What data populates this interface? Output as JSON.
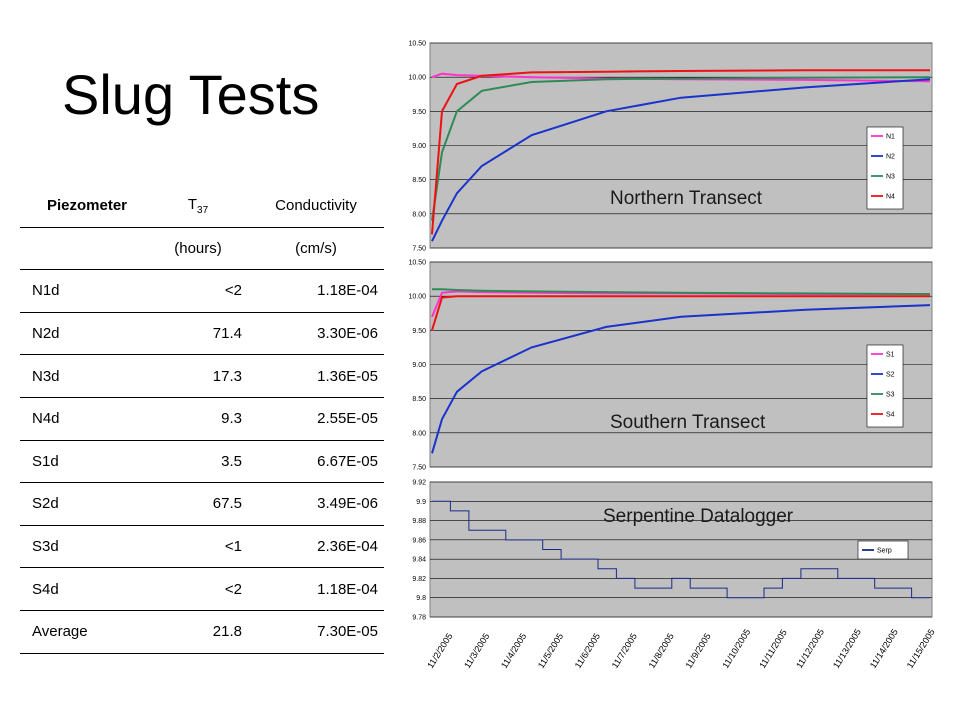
{
  "slide_title": "Slug Tests",
  "table": {
    "headers": [
      "Piezometer",
      "T",
      "Conductivity"
    ],
    "header_sub": "37",
    "units": [
      "",
      "(hours)",
      "(cm/s)"
    ],
    "rows": [
      [
        "N1d",
        "<2",
        "1.18E-04"
      ],
      [
        "N2d",
        "71.4",
        "3.30E-06"
      ],
      [
        "N3d",
        "17.3",
        "1.36E-05"
      ],
      [
        "N4d",
        "9.3",
        "2.55E-05"
      ],
      [
        "S1d",
        "3.5",
        "6.67E-05"
      ],
      [
        "S2d",
        "67.5",
        "3.49E-06"
      ],
      [
        "S3d",
        "<1",
        "2.36E-04"
      ],
      [
        "S4d",
        "<2",
        "1.18E-04"
      ],
      [
        "Average",
        "21.8",
        "7.30E-05"
      ]
    ]
  },
  "chart_data": [
    {
      "type": "line",
      "annotation": "Northern Transect",
      "ylim": [
        7.5,
        10.5
      ],
      "yticks": [
        "10.50",
        "10.00",
        "9.50",
        "9.00",
        "8.50",
        "8.00",
        "7.50"
      ],
      "grid": true,
      "legend_position": "right",
      "x": [
        0,
        0.02,
        0.05,
        0.1,
        0.2,
        0.35,
        0.5,
        0.75,
        1.0
      ],
      "series": [
        {
          "name": "N1",
          "color": "#ff33cc",
          "values": [
            10.0,
            10.05,
            10.03,
            10.02,
            10.0,
            9.98,
            9.97,
            9.96,
            9.94
          ]
        },
        {
          "name": "N2",
          "color": "#1a33cc",
          "values": [
            7.6,
            7.9,
            8.3,
            8.7,
            9.15,
            9.5,
            9.7,
            9.85,
            9.97
          ]
        },
        {
          "name": "N3",
          "color": "#2e8b57",
          "values": [
            7.9,
            8.9,
            9.5,
            9.8,
            9.93,
            9.97,
            9.98,
            9.99,
            10.0
          ]
        },
        {
          "name": "N4",
          "color": "#ee1111",
          "values": [
            7.7,
            9.5,
            9.9,
            10.02,
            10.07,
            10.08,
            10.09,
            10.1,
            10.1
          ]
        }
      ]
    },
    {
      "type": "line",
      "annotation": "Southern Transect",
      "ylim": [
        7.5,
        10.5
      ],
      "yticks": [
        "10.50",
        "10.00",
        "9.50",
        "9.00",
        "8.50",
        "8.00",
        "7.50"
      ],
      "grid": true,
      "legend_position": "right",
      "x": [
        0,
        0.02,
        0.05,
        0.1,
        0.2,
        0.35,
        0.5,
        0.75,
        1.0
      ],
      "series": [
        {
          "name": "S1",
          "color": "#ff33cc",
          "values": [
            9.7,
            10.05,
            10.07,
            10.06,
            10.05,
            10.04,
            10.04,
            10.03,
            10.03
          ]
        },
        {
          "name": "S2",
          "color": "#1a33cc",
          "values": [
            7.7,
            8.2,
            8.6,
            8.9,
            9.25,
            9.55,
            9.7,
            9.8,
            9.87
          ]
        },
        {
          "name": "S3",
          "color": "#2e8b57",
          "values": [
            10.1,
            10.1,
            10.09,
            10.08,
            10.07,
            10.06,
            10.05,
            10.04,
            10.03
          ]
        },
        {
          "name": "S4",
          "color": "#ee1111",
          "values": [
            9.5,
            9.98,
            10.0,
            10.0,
            10.0,
            10.0,
            10.0,
            10.0,
            10.0
          ]
        }
      ]
    },
    {
      "type": "line",
      "annotation": "Serpentine Datalogger",
      "ylim": [
        9.78,
        9.92
      ],
      "yticks": [
        "9.92",
        "9.9",
        "9.88",
        "9.86",
        "9.84",
        "9.82",
        "9.8",
        "9.78"
      ],
      "grid": true,
      "legend_position": "right",
      "categories": [
        "11/2/2005",
        "11/3/2005",
        "11/4/2005",
        "11/5/2005",
        "11/6/2005",
        "11/7/2005",
        "11/8/2005",
        "11/9/2005",
        "11/10/2005",
        "11/11/2005",
        "11/12/2005",
        "11/13/2005",
        "11/14/2005",
        "11/15/2005"
      ],
      "x": [
        0,
        0.5,
        1,
        1.5,
        2,
        2.5,
        3,
        3.5,
        4,
        4.5,
        5,
        5.5,
        6,
        6.5,
        7,
        7.5,
        8,
        8.5,
        9,
        9.5,
        10,
        10.5,
        11,
        11.5,
        12,
        12.5,
        13,
        13.5
      ],
      "series": [
        {
          "name": "Serp",
          "color": "#1a2a8a",
          "values": [
            9.9,
            9.89,
            9.87,
            9.87,
            9.86,
            9.86,
            9.85,
            9.84,
            9.84,
            9.83,
            9.82,
            9.81,
            9.81,
            9.82,
            9.81,
            9.81,
            9.8,
            9.8,
            9.81,
            9.82,
            9.83,
            9.83,
            9.82,
            9.82,
            9.81,
            9.81,
            9.8,
            9.8
          ]
        }
      ]
    }
  ]
}
